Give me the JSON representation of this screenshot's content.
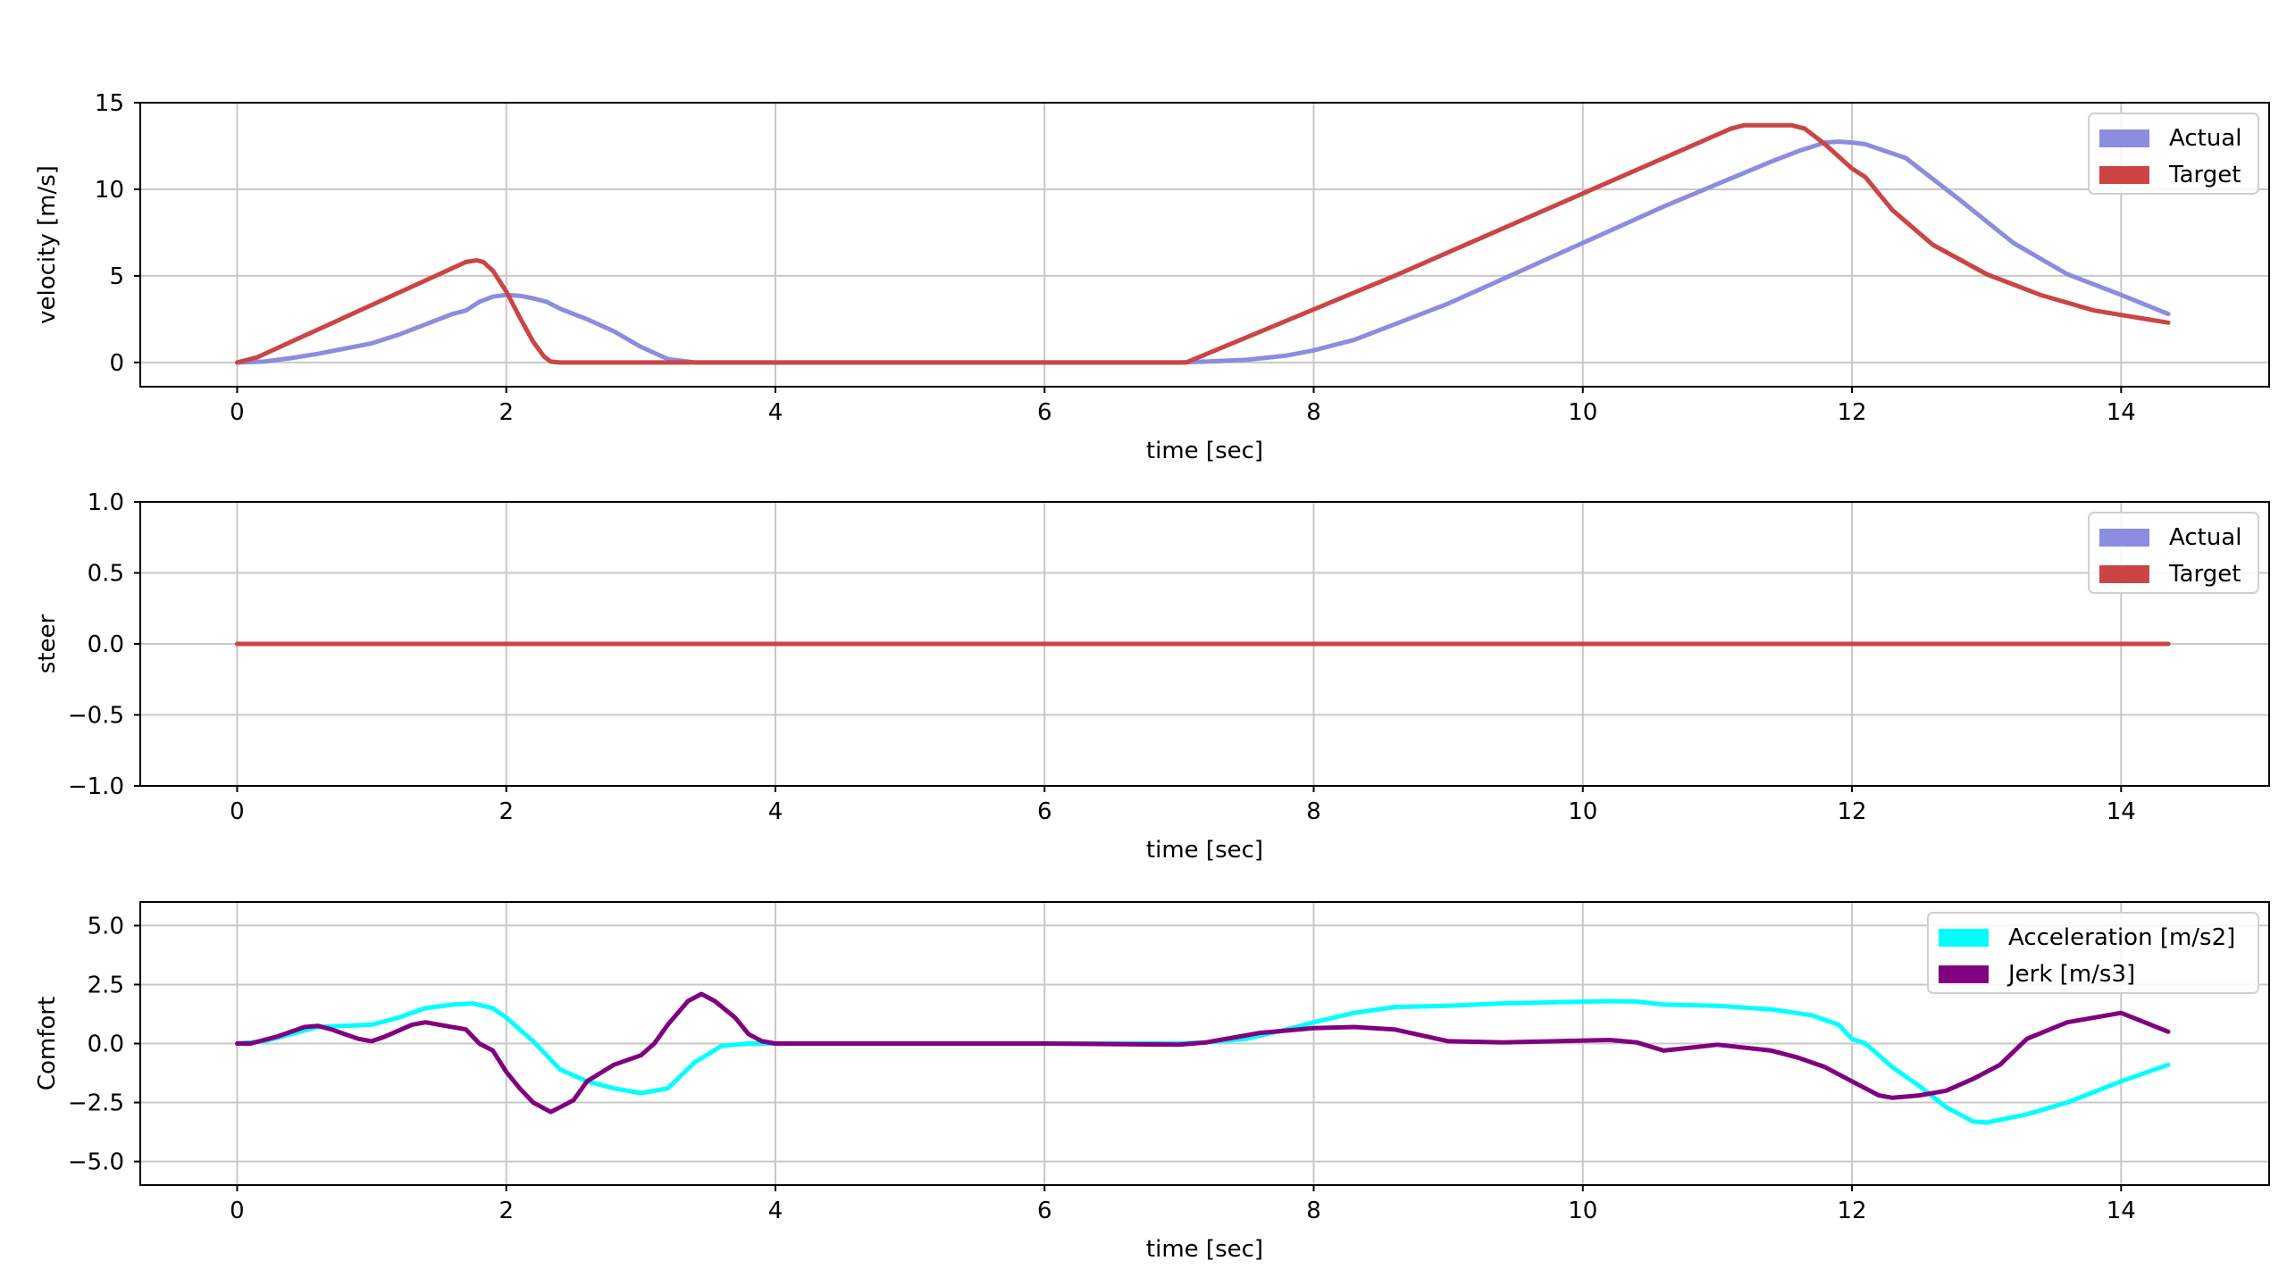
{
  "chart_data": [
    {
      "type": "line",
      "xlabel": "time [sec]",
      "ylabel": "velocity [m/s]",
      "xlim": [
        -0.72,
        15.1
      ],
      "ylim": [
        -1.4,
        15
      ],
      "xticks": [
        0,
        2,
        4,
        6,
        8,
        10,
        12,
        14
      ],
      "yticks": [
        0,
        5,
        10,
        15
      ],
      "xtick_labels": [
        "0",
        "2",
        "4",
        "6",
        "8",
        "10",
        "12",
        "14"
      ],
      "ytick_labels": [
        "0",
        "5",
        "10",
        "15"
      ],
      "grid": true,
      "legend": "top-right",
      "series": [
        {
          "name": "Actual",
          "color": "#8c8ce0",
          "x": [
            0,
            0.2,
            0.4,
            0.6,
            0.8,
            1.0,
            1.2,
            1.4,
            1.6,
            1.7,
            1.8,
            1.9,
            2.0,
            2.1,
            2.2,
            2.3,
            2.4,
            2.6,
            2.8,
            3.0,
            3.2,
            3.4,
            4.0,
            5.0,
            6.0,
            7.0,
            7.2,
            7.5,
            7.8,
            8.0,
            8.3,
            8.6,
            9.0,
            9.4,
            9.8,
            10.2,
            10.6,
            11.0,
            11.4,
            11.6,
            11.8,
            11.9,
            12.0,
            12.1,
            12.4,
            12.8,
            13.2,
            13.6,
            14.0,
            14.35
          ],
          "y": [
            0,
            0.05,
            0.25,
            0.5,
            0.8,
            1.1,
            1.6,
            2.2,
            2.8,
            3.0,
            3.5,
            3.8,
            3.9,
            3.85,
            3.7,
            3.5,
            3.1,
            2.5,
            1.8,
            0.9,
            0.2,
            0,
            0,
            0,
            0,
            0,
            0.05,
            0.15,
            0.4,
            0.7,
            1.3,
            2.2,
            3.4,
            4.8,
            6.2,
            7.6,
            9.0,
            10.3,
            11.6,
            12.2,
            12.7,
            12.75,
            12.7,
            12.6,
            11.8,
            9.4,
            6.9,
            5.1,
            3.9,
            2.8
          ]
        },
        {
          "name": "Target",
          "color": "#cc4444",
          "x": [
            0,
            0.15,
            1.7,
            1.78,
            1.83,
            1.9,
            2.0,
            2.1,
            2.2,
            2.28,
            2.33,
            2.4,
            7.05,
            7.1,
            8.6,
            11.1,
            11.2,
            11.55,
            11.65,
            11.8,
            12.0,
            12.1,
            12.3,
            12.6,
            13.0,
            13.4,
            13.8,
            14.35
          ],
          "y": [
            0,
            0.3,
            5.8,
            5.9,
            5.8,
            5.3,
            4.1,
            2.6,
            1.2,
            0.35,
            0.05,
            0,
            0,
            0.15,
            5.0,
            13.5,
            13.7,
            13.7,
            13.5,
            12.6,
            11.2,
            10.7,
            8.8,
            6.8,
            5.1,
            3.9,
            3.0,
            2.3
          ]
        }
      ]
    },
    {
      "type": "line",
      "xlabel": "time [sec]",
      "ylabel": "steer",
      "xlim": [
        -0.72,
        15.1
      ],
      "ylim": [
        -1.0,
        1.0
      ],
      "xticks": [
        0,
        2,
        4,
        6,
        8,
        10,
        12,
        14
      ],
      "yticks": [
        -1.0,
        -0.5,
        0.0,
        0.5,
        1.0
      ],
      "xtick_labels": [
        "0",
        "2",
        "4",
        "6",
        "8",
        "10",
        "12",
        "14"
      ],
      "ytick_labels": [
        "−1.0",
        "−0.5",
        "0.0",
        "0.5",
        "1.0"
      ],
      "grid": true,
      "legend": "top-right",
      "series": [
        {
          "name": "Actual",
          "color": "#8c8ce0",
          "x": [
            0,
            14.35
          ],
          "y": [
            0,
            0
          ]
        },
        {
          "name": "Target",
          "color": "#cc4444",
          "x": [
            0,
            14.35
          ],
          "y": [
            0,
            0
          ]
        }
      ]
    },
    {
      "type": "line",
      "xlabel": "time [sec]",
      "ylabel": "Comfort",
      "xlim": [
        -0.72,
        15.1
      ],
      "ylim": [
        -6,
        6
      ],
      "xticks": [
        0,
        2,
        4,
        6,
        8,
        10,
        12,
        14
      ],
      "yticks": [
        -5.0,
        -2.5,
        0.0,
        2.5,
        5.0
      ],
      "xtick_labels": [
        "0",
        "2",
        "4",
        "6",
        "8",
        "10",
        "12",
        "14"
      ],
      "ytick_labels": [
        "−5.0",
        "−2.5",
        "0.0",
        "2.5",
        "5.0"
      ],
      "grid": true,
      "legend": "top-right",
      "series": [
        {
          "name": "Acceleration [m/s2]",
          "color": "#00ffff",
          "x": [
            0,
            0.2,
            0.4,
            0.6,
            0.8,
            1.0,
            1.2,
            1.4,
            1.6,
            1.75,
            1.9,
            2.0,
            2.1,
            2.2,
            2.3,
            2.4,
            2.6,
            2.8,
            3.0,
            3.2,
            3.4,
            3.6,
            3.8,
            4.0,
            5.0,
            6.0,
            7.0,
            7.2,
            7.5,
            7.8,
            8.0,
            8.3,
            8.6,
            9.0,
            9.4,
            9.8,
            10.2,
            10.4,
            10.6,
            11.0,
            11.4,
            11.7,
            11.9,
            12.0,
            12.1,
            12.3,
            12.5,
            12.7,
            12.9,
            13.0,
            13.3,
            13.6,
            14.0,
            14.35
          ],
          "y": [
            0,
            0.1,
            0.4,
            0.7,
            0.75,
            0.8,
            1.1,
            1.5,
            1.65,
            1.7,
            1.5,
            1.1,
            0.6,
            0.1,
            -0.5,
            -1.1,
            -1.6,
            -1.9,
            -2.1,
            -1.9,
            -0.8,
            -0.1,
            0.0,
            0,
            0,
            0,
            0,
            0.05,
            0.2,
            0.6,
            0.9,
            1.3,
            1.55,
            1.6,
            1.7,
            1.75,
            1.8,
            1.78,
            1.65,
            1.6,
            1.45,
            1.2,
            0.8,
            0.2,
            0.0,
            -1.0,
            -1.8,
            -2.7,
            -3.3,
            -3.35,
            -3.0,
            -2.5,
            -1.6,
            -0.9
          ]
        },
        {
          "name": "Jerk [m/s3]",
          "color": "#800080",
          "x": [
            0,
            0.1,
            0.3,
            0.5,
            0.6,
            0.7,
            0.9,
            1.0,
            1.1,
            1.3,
            1.4,
            1.5,
            1.7,
            1.75,
            1.8,
            1.9,
            2.0,
            2.1,
            2.2,
            2.33,
            2.4,
            2.5,
            2.6,
            2.8,
            3.0,
            3.1,
            3.2,
            3.35,
            3.45,
            3.55,
            3.7,
            3.8,
            3.9,
            4.0,
            5.0,
            6.0,
            7.0,
            7.2,
            7.45,
            7.6,
            8.0,
            8.3,
            8.6,
            9.0,
            9.4,
            9.8,
            10.2,
            10.4,
            10.6,
            11.0,
            11.4,
            11.6,
            11.8,
            12.0,
            12.1,
            12.2,
            12.3,
            12.5,
            12.7,
            12.9,
            13.1,
            13.3,
            13.6,
            13.9,
            14.0,
            14.35
          ],
          "y": [
            0,
            0.0,
            0.3,
            0.7,
            0.75,
            0.6,
            0.2,
            0.1,
            0.3,
            0.8,
            0.9,
            0.8,
            0.6,
            0.3,
            0.0,
            -0.3,
            -1.2,
            -1.9,
            -2.5,
            -2.9,
            -2.7,
            -2.4,
            -1.6,
            -0.9,
            -0.5,
            0.0,
            0.8,
            1.8,
            2.1,
            1.8,
            1.1,
            0.4,
            0.1,
            0,
            0,
            0,
            -0.05,
            0.05,
            0.3,
            0.45,
            0.65,
            0.7,
            0.6,
            0.1,
            0.05,
            0.1,
            0.15,
            0.05,
            -0.3,
            -0.05,
            -0.3,
            -0.6,
            -1.0,
            -1.6,
            -1.9,
            -2.2,
            -2.3,
            -2.2,
            -2.0,
            -1.5,
            -0.9,
            0.2,
            0.9,
            1.2,
            1.3,
            0.5
          ]
        }
      ]
    }
  ]
}
